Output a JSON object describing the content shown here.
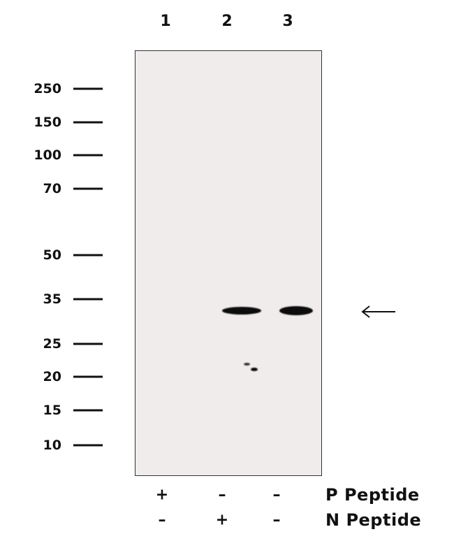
{
  "lanes": [
    "1",
    "2",
    "3"
  ],
  "markers": [
    "250",
    "150",
    "100",
    "70",
    "50",
    "35",
    "25",
    "20",
    "15",
    "10"
  ],
  "conditions": [
    {
      "label": "P Peptide",
      "values": [
        "+",
        "–",
        "–"
      ]
    },
    {
      "label": "N Peptide",
      "values": [
        "–",
        "+",
        "–"
      ]
    }
  ],
  "target_arrow": "left-arrow-icon",
  "colors": {
    "membrane": "#f1ecec",
    "band": "#0c0c0c"
  }
}
